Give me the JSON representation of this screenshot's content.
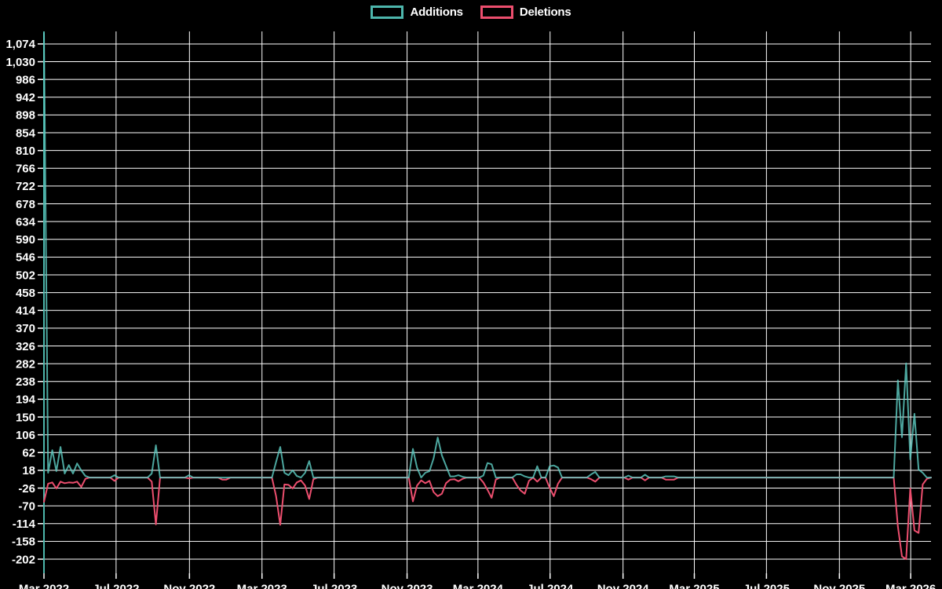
{
  "legend": {
    "additions_label": "Additions",
    "deletions_label": "Deletions"
  },
  "colors": {
    "background": "#000000",
    "grid": "#ffffff",
    "text": "#ffffff",
    "axis_spine": "#4db6ac",
    "additions": "#4db6ac",
    "additions_line": "#5fd0c6",
    "deletions": "#ec4e6e",
    "deletions_line": "#ec4e6e"
  },
  "chart_data": {
    "type": "line",
    "title": "",
    "xlabel": "",
    "ylabel": "",
    "legend_position": "top-center",
    "grid": true,
    "x_unit": "weeks",
    "xlim": [
      0,
      214
    ],
    "ylim": [
      -237,
      1105
    ],
    "y_axis": {
      "tick_values": [
        1074,
        1030,
        986,
        942,
        898,
        854,
        810,
        766,
        722,
        678,
        634,
        590,
        546,
        502,
        458,
        414,
        370,
        326,
        282,
        238,
        194,
        150,
        106,
        62,
        18,
        -26,
        -70,
        -114,
        -158,
        -202
      ],
      "tick_labels": [
        "1,074",
        "1,030",
        "986",
        "942",
        "898",
        "854",
        "810",
        "766",
        "722",
        "678",
        "634",
        "590",
        "546",
        "502",
        "458",
        "414",
        "370",
        "326",
        "282",
        "238",
        "194",
        "150",
        "106",
        "62",
        "18",
        "-26",
        "-70",
        "-114",
        "-158",
        "-202"
      ]
    },
    "x_axis": {
      "tick_weeks": [
        0,
        17.4,
        35.1,
        52.6,
        70.0,
        87.6,
        104.7,
        122.1,
        139.7,
        156.9,
        174.3,
        191.9,
        209.1
      ],
      "tick_labels": [
        "Mar 2022",
        "Jul 2022",
        "Nov 2022",
        "Mar 2023",
        "Jul 2023",
        "Nov 2023",
        "Mar 2024",
        "Jul 2024",
        "Nov 2024",
        "Mar 2025",
        "Jul 2025",
        "Nov 2025",
        "Mar 2026"
      ]
    },
    "series": [
      {
        "name": "Additions",
        "values": [
          1100,
          12,
          68,
          16,
          76,
          10,
          31,
          10,
          35,
          18,
          4,
          0,
          0,
          0,
          0,
          0,
          0,
          6,
          0,
          0,
          0,
          0,
          0,
          0,
          0,
          0,
          10,
          80,
          0,
          0,
          0,
          0,
          0,
          0,
          0,
          6,
          0,
          0,
          0,
          0,
          0,
          0,
          0,
          0,
          0,
          0,
          0,
          0,
          0,
          0,
          0,
          0,
          0,
          0,
          0,
          0,
          39,
          76,
          12,
          6,
          18,
          4,
          0,
          12,
          41,
          0,
          0,
          0,
          0,
          0,
          0,
          0,
          0,
          0,
          0,
          0,
          0,
          0,
          0,
          0,
          0,
          0,
          0,
          0,
          0,
          0,
          0,
          0,
          0,
          71,
          25,
          0,
          12,
          16,
          48,
          99,
          55,
          29,
          3,
          3,
          6,
          2,
          0,
          0,
          0,
          0,
          5,
          36,
          33,
          0,
          0,
          0,
          0,
          0,
          8,
          8,
          3,
          0,
          0,
          28,
          0,
          0,
          28,
          30,
          25,
          0,
          0,
          0,
          0,
          0,
          0,
          0,
          8,
          14,
          0,
          0,
          0,
          0,
          0,
          0,
          0,
          5,
          0,
          0,
          0,
          7,
          0,
          0,
          0,
          0,
          3,
          3,
          3,
          0,
          0,
          0,
          0,
          0,
          0,
          0,
          0,
          0,
          0,
          0,
          0,
          0,
          0,
          0,
          0,
          0,
          0,
          0,
          0,
          0,
          0,
          0,
          0,
          0,
          0,
          0,
          0,
          0,
          0,
          0,
          0,
          0,
          0,
          0,
          0,
          0,
          0,
          0,
          0,
          0,
          0,
          0,
          0,
          0,
          0,
          0,
          0,
          0,
          0,
          0,
          0,
          0,
          241,
          100,
          283,
          45,
          158,
          20,
          12,
          0,
          0
        ]
      },
      {
        "name": "Deletions",
        "values": [
          -60,
          -15,
          -12,
          -27,
          -10,
          -14,
          -12,
          -13,
          -10,
          -23,
          -3,
          0,
          0,
          0,
          0,
          0,
          0,
          -8,
          0,
          0,
          0,
          0,
          0,
          0,
          0,
          0,
          -10,
          -116,
          0,
          0,
          0,
          0,
          0,
          0,
          0,
          -2,
          0,
          0,
          0,
          0,
          0,
          0,
          0,
          -5,
          -5,
          0,
          0,
          0,
          0,
          0,
          0,
          0,
          0,
          0,
          0,
          0,
          -46,
          -117,
          -17,
          -18,
          -27,
          -12,
          -7,
          -20,
          -53,
          -4,
          0,
          0,
          0,
          0,
          0,
          0,
          0,
          0,
          0,
          0,
          0,
          0,
          0,
          0,
          0,
          0,
          0,
          0,
          0,
          0,
          0,
          0,
          0,
          -59,
          -20,
          -7,
          -14,
          -8,
          -36,
          -46,
          -40,
          -14,
          -5,
          -4,
          -9,
          -3,
          0,
          0,
          0,
          0,
          -12,
          -30,
          -50,
          -5,
          0,
          0,
          0,
          0,
          -18,
          -32,
          -40,
          -8,
          0,
          -10,
          0,
          0,
          -25,
          -46,
          -15,
          0,
          0,
          0,
          0,
          0,
          0,
          0,
          -4,
          -10,
          0,
          0,
          0,
          0,
          0,
          0,
          0,
          -5,
          0,
          0,
          0,
          -7,
          0,
          0,
          0,
          0,
          -5,
          -5,
          -5,
          0,
          0,
          0,
          0,
          0,
          0,
          0,
          0,
          0,
          0,
          0,
          0,
          0,
          0,
          0,
          0,
          0,
          0,
          0,
          0,
          0,
          0,
          0,
          0,
          0,
          0,
          0,
          0,
          0,
          0,
          0,
          0,
          0,
          0,
          0,
          0,
          0,
          0,
          0,
          0,
          0,
          0,
          0,
          0,
          0,
          0,
          0,
          0,
          0,
          0,
          0,
          0,
          0,
          -121,
          -195,
          -202,
          -27,
          -131,
          -137,
          -17,
          -3,
          0
        ]
      }
    ]
  }
}
